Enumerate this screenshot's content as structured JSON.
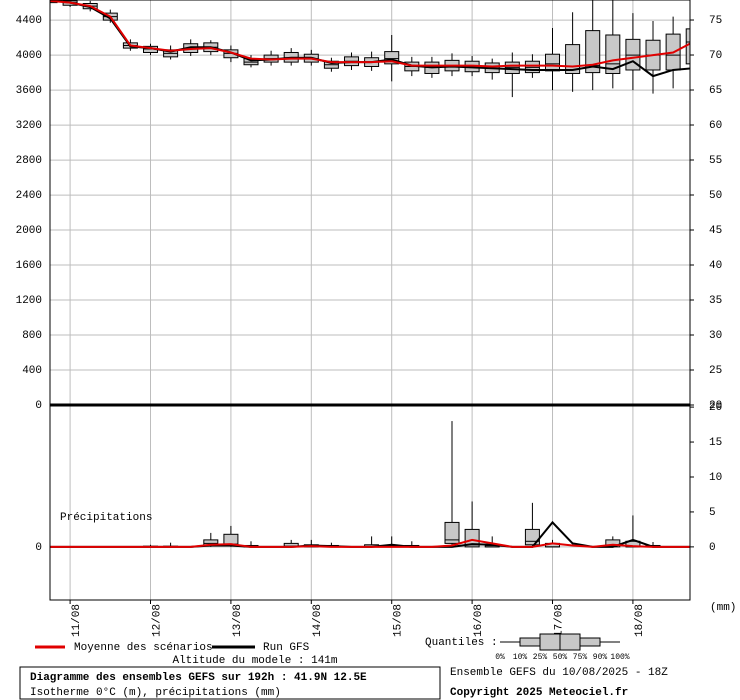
{
  "chart_data": [
    {
      "type": "boxplot-line",
      "x": [
        10.75,
        11,
        11.25,
        11.5,
        11.75,
        12,
        12.25,
        12.5,
        12.75,
        13,
        13.25,
        13.5,
        13.75,
        14,
        14.25,
        14.5,
        14.75,
        15,
        15.25,
        15.5,
        15.75,
        16,
        16.25,
        16.5,
        16.75,
        17,
        17.25,
        17.5,
        17.75,
        18,
        18.25,
        18.5,
        18.75
      ],
      "xlim": [
        10.75,
        18.71
      ],
      "ylim": [
        0,
        4630
      ],
      "yticks": [
        0,
        400,
        800,
        1200,
        1600,
        2000,
        2400,
        2800,
        3200,
        3600,
        4000,
        4400
      ],
      "y2lim": [
        20,
        77.86
      ],
      "y2ticks": [
        20,
        25,
        30,
        35,
        40,
        45,
        50,
        55,
        60,
        65,
        70,
        75
      ],
      "grid": true,
      "boxes": {
        "color": "#c8c8c8",
        "min": [
          4580,
          4550,
          4500,
          4370,
          4050,
          4000,
          3950,
          3990,
          4000,
          3920,
          3860,
          3880,
          3880,
          3880,
          3810,
          3830,
          3820,
          3700,
          3760,
          3740,
          3760,
          3760,
          3720,
          3520,
          3740,
          3600,
          3580,
          3600,
          3620,
          3600,
          3560,
          3620,
          3700
        ],
        "q25": [
          4600,
          4570,
          4530,
          4400,
          4080,
          4030,
          3980,
          4030,
          4040,
          3970,
          3890,
          3920,
          3920,
          3920,
          3850,
          3880,
          3870,
          3900,
          3820,
          3790,
          3820,
          3810,
          3800,
          3790,
          3800,
          3820,
          3790,
          3800,
          3790,
          3830,
          3830,
          3830,
          3900
        ],
        "median": [
          4620,
          4600,
          4560,
          4440,
          4110,
          4070,
          4020,
          4080,
          4090,
          4020,
          3920,
          3960,
          3970,
          3960,
          3890,
          3930,
          3920,
          3960,
          3870,
          3860,
          3880,
          3870,
          3850,
          3860,
          3860,
          3900,
          3870,
          3880,
          3900,
          4000,
          4000,
          4000,
          4150
        ],
        "q75": [
          4650,
          4620,
          4590,
          4480,
          4140,
          4100,
          4060,
          4130,
          4140,
          4060,
          3960,
          4000,
          4030,
          4010,
          3930,
          3980,
          3970,
          4040,
          3920,
          3920,
          3940,
          3930,
          3910,
          3920,
          3930,
          4010,
          4120,
          4280,
          4230,
          4180,
          4170,
          4240,
          4300
        ],
        "max": [
          4680,
          4650,
          4620,
          4520,
          4180,
          4130,
          4110,
          4180,
          4170,
          4110,
          4000,
          4050,
          4080,
          4060,
          3970,
          4030,
          4040,
          4230,
          3980,
          3980,
          4020,
          3990,
          3960,
          4030,
          4010,
          4310,
          4490,
          4650,
          4650,
          4480,
          4390,
          4440,
          4560
        ]
      },
      "series": [
        {
          "name": "Moyenne des scénarios",
          "color": "#e00000",
          "values": [
            4620,
            4600,
            4560,
            4440,
            4110,
            4080,
            4050,
            4070,
            4080,
            4030,
            3960,
            3950,
            3960,
            3960,
            3920,
            3920,
            3920,
            3930,
            3880,
            3880,
            3880,
            3880,
            3870,
            3880,
            3880,
            3880,
            3870,
            3890,
            3940,
            3970,
            4000,
            4030,
            4150
          ]
        },
        {
          "name": "Run GFS",
          "color": "#000000",
          "values": [
            4630,
            4600,
            4550,
            4420,
            4100,
            4080,
            4040,
            4090,
            4090,
            4030,
            3940,
            3950,
            3970,
            3970,
            3910,
            3920,
            3920,
            3950,
            3880,
            3860,
            3870,
            3860,
            3850,
            3840,
            3830,
            3830,
            3830,
            3870,
            3840,
            3930,
            3760,
            3830,
            3850
          ]
        }
      ]
    },
    {
      "type": "boxplot-line",
      "label": "Précipitations",
      "y2label": "(mm)",
      "x": [
        10.75,
        11,
        11.25,
        11.5,
        11.75,
        12,
        12.25,
        12.5,
        12.75,
        13,
        13.25,
        13.5,
        13.75,
        14,
        14.25,
        14.5,
        14.75,
        15,
        15.25,
        15.5,
        15.75,
        16,
        16.25,
        16.5,
        16.75,
        17,
        17.25,
        17.5,
        17.75,
        18,
        18.25,
        18.5,
        18.75
      ],
      "xlim": [
        10.75,
        18.71
      ],
      "xticks": [
        {
          "value": 11,
          "label": "11/08"
        },
        {
          "value": 12,
          "label": "12/08"
        },
        {
          "value": 13,
          "label": "13/08"
        },
        {
          "value": 14,
          "label": "14/08"
        },
        {
          "value": 15,
          "label": "15/08"
        },
        {
          "value": 16,
          "label": "16/08"
        },
        {
          "value": 17,
          "label": "17/08"
        },
        {
          "value": 18,
          "label": "18/08"
        }
      ],
      "ylim": [
        -7.6,
        20.3
      ],
      "yticks": [
        0
      ],
      "y2lim": [
        -7.6,
        20.3
      ],
      "y2ticks": [
        0,
        5,
        10,
        15,
        20
      ],
      "grid": true,
      "boxes": {
        "color": "#c8c8c8",
        "x": [
          12,
          12.25,
          12.75,
          13,
          13.25,
          13.75,
          14,
          14.25,
          14.75,
          15,
          15.25,
          15.75,
          16,
          16.25,
          16.75,
          17,
          17.75,
          18,
          18.25
        ],
        "min": [
          0,
          0,
          0,
          0,
          0,
          0,
          0,
          0,
          0,
          0,
          0,
          0,
          0,
          0,
          0,
          0,
          0,
          0,
          0
        ],
        "q25": [
          0,
          0,
          0.2,
          0.2,
          0,
          0,
          0,
          0,
          0,
          0,
          0,
          0.5,
          0,
          0,
          0.3,
          0,
          0,
          0,
          0
        ],
        "median": [
          0,
          0,
          0.5,
          0.4,
          0,
          0.1,
          0,
          0,
          0,
          0,
          0,
          1,
          0.3,
          0,
          0.8,
          0,
          0.2,
          0,
          0
        ],
        "q75": [
          0.1,
          0.1,
          1,
          1.8,
          0.2,
          0.5,
          0.3,
          0.2,
          0.3,
          0.2,
          0.2,
          3.5,
          2.5,
          0.2,
          2.5,
          0.5,
          1,
          0.8,
          0.2
        ],
        "max": [
          0.3,
          0.6,
          2,
          3,
          0.8,
          1,
          1,
          0.6,
          1.5,
          1.5,
          0.8,
          18,
          6.5,
          1.5,
          6.3,
          1,
          1.5,
          4.5,
          0.7
        ]
      },
      "series": [
        {
          "color": "#e00000",
          "values": [
            0,
            0,
            0,
            0,
            0,
            0,
            0,
            0,
            0.3,
            0.4,
            0,
            0,
            0,
            0.1,
            0,
            0,
            0,
            0,
            0,
            0,
            0.2,
            1,
            0.5,
            0,
            0,
            0.5,
            0.2,
            0,
            0.3,
            0.1,
            0,
            0,
            0
          ]
        },
        {
          "color": "#000000",
          "values": [
            0,
            0,
            0,
            0,
            0,
            0,
            0,
            0,
            0.2,
            0.2,
            0,
            0,
            0,
            0.2,
            0.1,
            0,
            0,
            0.3,
            0,
            0,
            0,
            0.4,
            0.3,
            0,
            0,
            3.5,
            0.5,
            0,
            0,
            1,
            0,
            0,
            0
          ]
        }
      ]
    }
  ],
  "legend": {
    "quantiles": "Quantiles :",
    "quantile_labels": [
      "0%",
      "10%",
      "25%",
      "50%",
      "75%",
      "90%",
      "100%"
    ],
    "altitude": "Altitude du modele : 141m"
  },
  "footer": {
    "title": "Diagramme des ensembles GEFS sur 192h : 41.9N 12.5E",
    "subtitle": "Isotherme 0°C (m), précipitations (mm)",
    "run": "Ensemble GEFS du 10/08/2025 - 18Z",
    "copyright": "Copyright 2025 Meteociel.fr"
  }
}
